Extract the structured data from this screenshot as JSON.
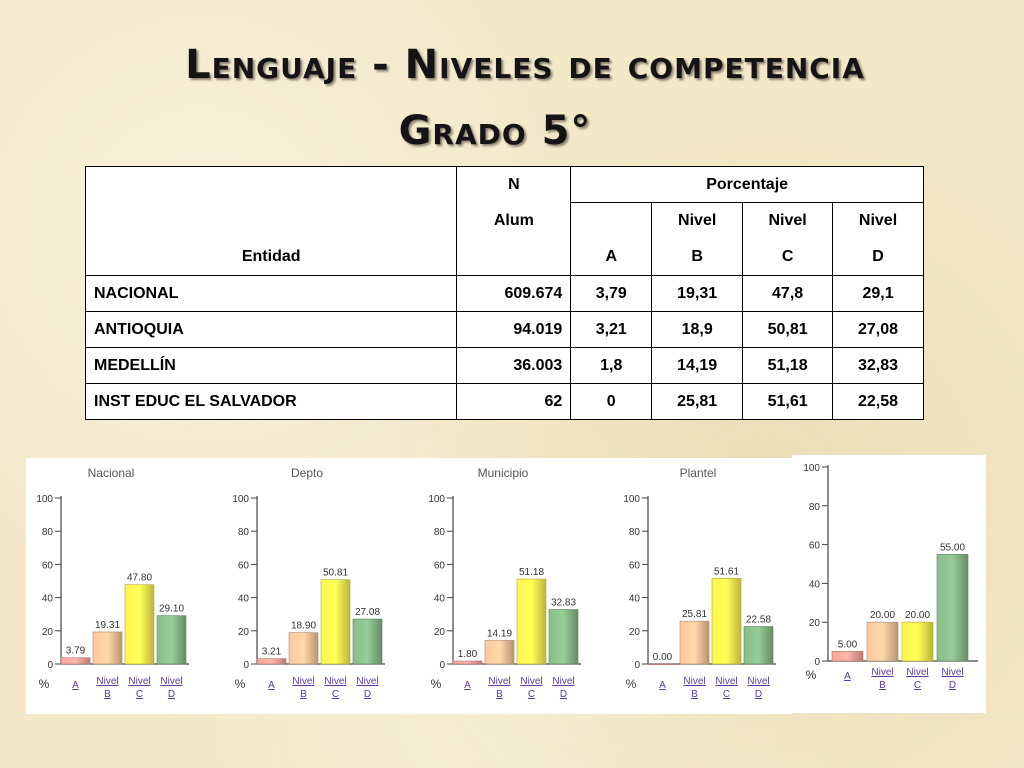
{
  "title": {
    "line1": "Lenguaje - Niveles de competencia",
    "line2": "Grado 5°"
  },
  "table": {
    "header": {
      "entity": "Entidad",
      "n_line1": "N",
      "n_line2": "Alum",
      "percentage": "Porcentaje",
      "nivel_word": "Nivel",
      "levels": [
        "A",
        "B",
        "C",
        "D"
      ]
    },
    "rows": [
      {
        "entity": "NACIONAL",
        "n": "609.674",
        "a": "3,79",
        "b": "19,31",
        "c": "47,8",
        "d": "29,1"
      },
      {
        "entity": "ANTIOQUIA",
        "n": "94.019",
        "a": "3,21",
        "b": "18,9",
        "c": "50,81",
        "d": "27,08"
      },
      {
        "entity": "MEDELLÍN",
        "n": "36.003",
        "a": "1,8",
        "b": "14,19",
        "c": "51,18",
        "d": "32,83"
      },
      {
        "entity": "INST EDUC EL SALVADOR",
        "n": "62",
        "a": "0",
        "b": "25,81",
        "c": "51,61",
        "d": "22,58"
      }
    ]
  },
  "colors": {
    "A": "#e89a90",
    "B": "#e8b890",
    "C": "#ece24a",
    "D": "#7fae80"
  },
  "chart_data": [
    {
      "type": "bar",
      "title": "Nacional",
      "ylabel": "%",
      "ylim": [
        0,
        100
      ],
      "yticks": [
        "0",
        "20",
        "40",
        "60",
        "80",
        "100"
      ],
      "categories": [
        "A",
        "Nivel B",
        "Nivel C",
        "Nivel D"
      ],
      "values": [
        3.79,
        19.31,
        47.8,
        29.1
      ],
      "labels": [
        "3.79",
        "19.31",
        "47.80",
        "29.10"
      ]
    },
    {
      "type": "bar",
      "title": "Depto",
      "ylabel": "%",
      "ylim": [
        0,
        100
      ],
      "yticks": [
        "0",
        "20",
        "40",
        "60",
        "80",
        "100"
      ],
      "categories": [
        "A",
        "Nivel B",
        "Nivel C",
        "Nivel D"
      ],
      "values": [
        3.21,
        18.9,
        50.81,
        27.08
      ],
      "labels": [
        "3.21",
        "18.90",
        "50.81",
        "27.08"
      ]
    },
    {
      "type": "bar",
      "title": "Municipio",
      "ylabel": "%",
      "ylim": [
        0,
        100
      ],
      "yticks": [
        "0",
        "20",
        "40",
        "60",
        "80",
        "100"
      ],
      "categories": [
        "A",
        "Nivel B",
        "Nivel C",
        "Nivel D"
      ],
      "values": [
        1.8,
        14.19,
        51.18,
        32.83
      ],
      "labels": [
        "1.80",
        "14.19",
        "51.18",
        "32.83"
      ]
    },
    {
      "type": "bar",
      "title": "Plantel",
      "ylabel": "%",
      "ylim": [
        0,
        100
      ],
      "yticks": [
        "0",
        "20",
        "40",
        "60",
        "80",
        "100"
      ],
      "categories": [
        "A",
        "Nivel B",
        "Nivel C",
        "Nivel D"
      ],
      "values": [
        0.0,
        25.81,
        51.61,
        22.58
      ],
      "labels": [
        "0.00",
        "25.81",
        "51.61",
        "22.58"
      ]
    },
    {
      "type": "bar",
      "title": "",
      "ylabel": "%",
      "ylim": [
        0,
        100
      ],
      "yticks": [
        "0",
        "20",
        "40",
        "60",
        "80",
        "100"
      ],
      "categories": [
        "A",
        "Nivel B",
        "Nivel C",
        "Nivel D"
      ],
      "values": [
        5.0,
        20.0,
        20.0,
        55.0
      ],
      "labels": [
        "5.00",
        "20.00",
        "20.00",
        "55.00"
      ]
    }
  ]
}
